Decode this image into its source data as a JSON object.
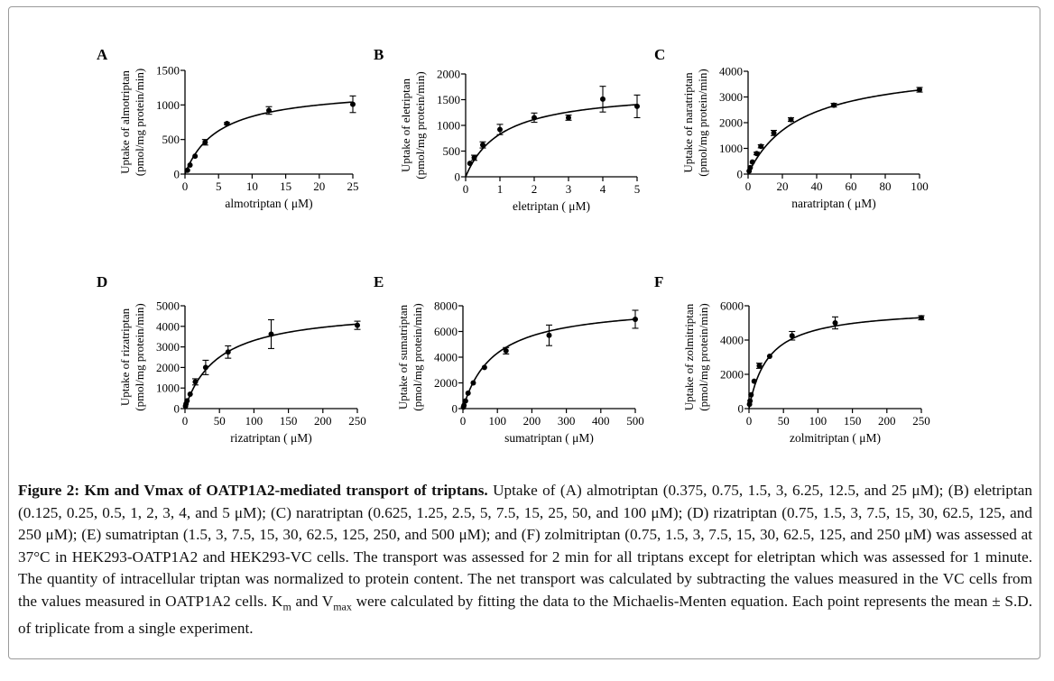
{
  "chart_data": [
    {
      "type": "scatter",
      "panel_label": "A",
      "title": "",
      "xlabel": "almotriptan ( μM)",
      "ylabel_line1": "Uptake of almotriptan",
      "ylabel_line2": "(pmol/mg protein/min)",
      "xlim": [
        0,
        25
      ],
      "ylim": [
        0,
        1500
      ],
      "xticks": [
        0,
        5,
        10,
        15,
        20,
        25
      ],
      "yticks": [
        0,
        500,
        1000,
        1500
      ],
      "points": [
        {
          "x": 0.375,
          "y": 55,
          "err": 0
        },
        {
          "x": 0.75,
          "y": 130,
          "err": 0
        },
        {
          "x": 1.5,
          "y": 260,
          "err": 0
        },
        {
          "x": 3,
          "y": 460,
          "err": 40
        },
        {
          "x": 6.25,
          "y": 730,
          "err": 15
        },
        {
          "x": 12.5,
          "y": 920,
          "err": 55
        },
        {
          "x": 25,
          "y": 1010,
          "err": 120
        }
      ],
      "fit": {
        "model": "Michaelis-Menten",
        "vmax": 1250,
        "km": 5
      }
    },
    {
      "type": "scatter",
      "panel_label": "B",
      "title": "",
      "xlabel": "eletriptan ( μM)",
      "ylabel_line1": "Uptake of eletriptan",
      "ylabel_line2": "(pmol/mg protein/min)",
      "xlim": [
        0,
        5
      ],
      "ylim": [
        0,
        2000
      ],
      "xticks": [
        0,
        1,
        2,
        3,
        4,
        5
      ],
      "yticks": [
        0,
        500,
        1000,
        1500,
        2000
      ],
      "points": [
        {
          "x": 0.125,
          "y": 260,
          "err": 0
        },
        {
          "x": 0.25,
          "y": 370,
          "err": 50
        },
        {
          "x": 0.5,
          "y": 620,
          "err": 60
        },
        {
          "x": 1,
          "y": 920,
          "err": 100
        },
        {
          "x": 2,
          "y": 1150,
          "err": 90
        },
        {
          "x": 3,
          "y": 1150,
          "err": 50
        },
        {
          "x": 4,
          "y": 1510,
          "err": 250
        },
        {
          "x": 5,
          "y": 1370,
          "err": 220
        }
      ],
      "fit": {
        "model": "Michaelis-Menten",
        "vmax": 1700,
        "km": 1.05
      }
    },
    {
      "type": "scatter",
      "panel_label": "C",
      "title": "",
      "xlabel": "naratriptan ( μM)",
      "ylabel_line1": "Uptake of naratriptan",
      "ylabel_line2": "(pmol/mg protein/min)",
      "xlim": [
        0,
        100
      ],
      "ylim": [
        0,
        4000
      ],
      "xticks": [
        0,
        20,
        40,
        60,
        80,
        100
      ],
      "yticks": [
        0,
        1000,
        2000,
        3000,
        4000
      ],
      "points": [
        {
          "x": 0.625,
          "y": 120,
          "err": 0
        },
        {
          "x": 1.25,
          "y": 250,
          "err": 0
        },
        {
          "x": 2.5,
          "y": 470,
          "err": 0
        },
        {
          "x": 5,
          "y": 800,
          "err": 50
        },
        {
          "x": 7.5,
          "y": 1080,
          "err": 60
        },
        {
          "x": 15,
          "y": 1600,
          "err": 100
        },
        {
          "x": 25,
          "y": 2120,
          "err": 70
        },
        {
          "x": 50,
          "y": 2680,
          "err": 70
        },
        {
          "x": 100,
          "y": 3280,
          "err": 90
        }
      ],
      "fit": {
        "model": "Michaelis-Menten",
        "vmax": 4250,
        "km": 30
      }
    },
    {
      "type": "scatter",
      "panel_label": "D",
      "title": "",
      "xlabel": "rizatriptan ( μM)",
      "ylabel_line1": "Uptake of rizatriptan",
      "ylabel_line2": "(pmol/mg protein/min)",
      "xlim": [
        0,
        250
      ],
      "ylim": [
        0,
        5000
      ],
      "xticks": [
        0,
        50,
        100,
        150,
        200,
        250
      ],
      "yticks": [
        0,
        1000,
        2000,
        3000,
        4000,
        5000
      ],
      "points": [
        {
          "x": 0.75,
          "y": 120,
          "err": 0
        },
        {
          "x": 1.5,
          "y": 230,
          "err": 0
        },
        {
          "x": 3,
          "y": 380,
          "err": 0
        },
        {
          "x": 7.5,
          "y": 700,
          "err": 0
        },
        {
          "x": 15,
          "y": 1300,
          "err": 150
        },
        {
          "x": 30,
          "y": 2000,
          "err": 350
        },
        {
          "x": 62.5,
          "y": 2750,
          "err": 300
        },
        {
          "x": 125,
          "y": 3620,
          "err": 700
        },
        {
          "x": 250,
          "y": 4050,
          "err": 200
        }
      ],
      "fit": {
        "model": "Michaelis-Menten",
        "vmax": 4900,
        "km": 48
      }
    },
    {
      "type": "scatter",
      "panel_label": "E",
      "title": "",
      "xlabel": "sumatriptan ( μM)",
      "ylabel_line1": "Uptake of sumatriptan",
      "ylabel_line2": "(pmol/mg protein/min)",
      "xlim": [
        0,
        500
      ],
      "ylim": [
        0,
        8000
      ],
      "xticks": [
        0,
        100,
        200,
        300,
        400,
        500
      ],
      "yticks": [
        0,
        2000,
        4000,
        6000,
        8000
      ],
      "points": [
        {
          "x": 1.5,
          "y": 110,
          "err": 0
        },
        {
          "x": 3,
          "y": 250,
          "err": 0
        },
        {
          "x": 7.5,
          "y": 600,
          "err": 0
        },
        {
          "x": 15,
          "y": 1200,
          "err": 0
        },
        {
          "x": 30,
          "y": 2000,
          "err": 0
        },
        {
          "x": 62.5,
          "y": 3200,
          "err": 0
        },
        {
          "x": 125,
          "y": 4500,
          "err": 250
        },
        {
          "x": 250,
          "y": 5700,
          "err": 800
        },
        {
          "x": 500,
          "y": 6950,
          "err": 700
        }
      ],
      "fit": {
        "model": "Michaelis-Menten",
        "vmax": 8200,
        "km": 90
      }
    },
    {
      "type": "scatter",
      "panel_label": "F",
      "title": "",
      "xlabel": "zolmitriptan ( μM)",
      "ylabel_line1": "Uptake of zolmitriptan",
      "ylabel_line2": "(pmol/mg protein/min)",
      "xlim": [
        0,
        250
      ],
      "ylim": [
        0,
        6000
      ],
      "xticks": [
        0,
        50,
        100,
        150,
        200,
        250
      ],
      "yticks": [
        0,
        2000,
        4000,
        6000
      ],
      "points": [
        {
          "x": 0.75,
          "y": 250,
          "err": 0
        },
        {
          "x": 1.5,
          "y": 450,
          "err": 0
        },
        {
          "x": 3,
          "y": 800,
          "err": 0
        },
        {
          "x": 7.5,
          "y": 1600,
          "err": 0
        },
        {
          "x": 15,
          "y": 2500,
          "err": 150
        },
        {
          "x": 30,
          "y": 3050,
          "err": 0
        },
        {
          "x": 62.5,
          "y": 4250,
          "err": 250
        },
        {
          "x": 125,
          "y": 5000,
          "err": 350
        },
        {
          "x": 250,
          "y": 5300,
          "err": 120
        }
      ],
      "fit": {
        "model": "Michaelis-Menten",
        "vmax": 5900,
        "km": 28
      }
    }
  ],
  "caption": {
    "bold": "Figure 2: Km and Vmax of OATP1A2-mediated transport of triptans.",
    "text_1": " Uptake of (A) almotriptan (0.375, 0.75, 1.5, 3, 6.25, 12.5, and 25 μM); (B) eletriptan (0.125, 0.25, 0.5, 1, 2, 3, 4, and 5 μM); (C) naratriptan (0.625, 1.25, 2.5, 5, 7.5, 15, 25, 50, and 100 μM); (D) rizatriptan (0.75, 1.5, 3, 7.5, 15, 30, 62.5, 125, and 250 μM); (E) sumatriptan (1.5, 3, 7.5, 15, 30, 62.5, 125, 250, and 500 μM); and (F) zolmitriptan (0.75, 1.5, 3, 7.5, 15, 30, 62.5, 125, and 250 μM) was assessed at 37°C in HEK293-OATP1A2 and HEK293-VC cells. The transport was assessed for 2 min for all triptans except for eletriptan which was assessed for 1 minute. The quantity of intracellular triptan was normalized to protein content. The net transport was calculated by subtracting the values measured in the VC cells from the values measured in OATP1A2 cells. K",
    "km_sub": "m",
    "text_2": " and V",
    "vmax_sub": "max",
    "text_3": " were calculated by fitting the data to the Michaelis-Menten equation. Each point represents the mean ± S.D. of triplicate from a single experiment."
  }
}
